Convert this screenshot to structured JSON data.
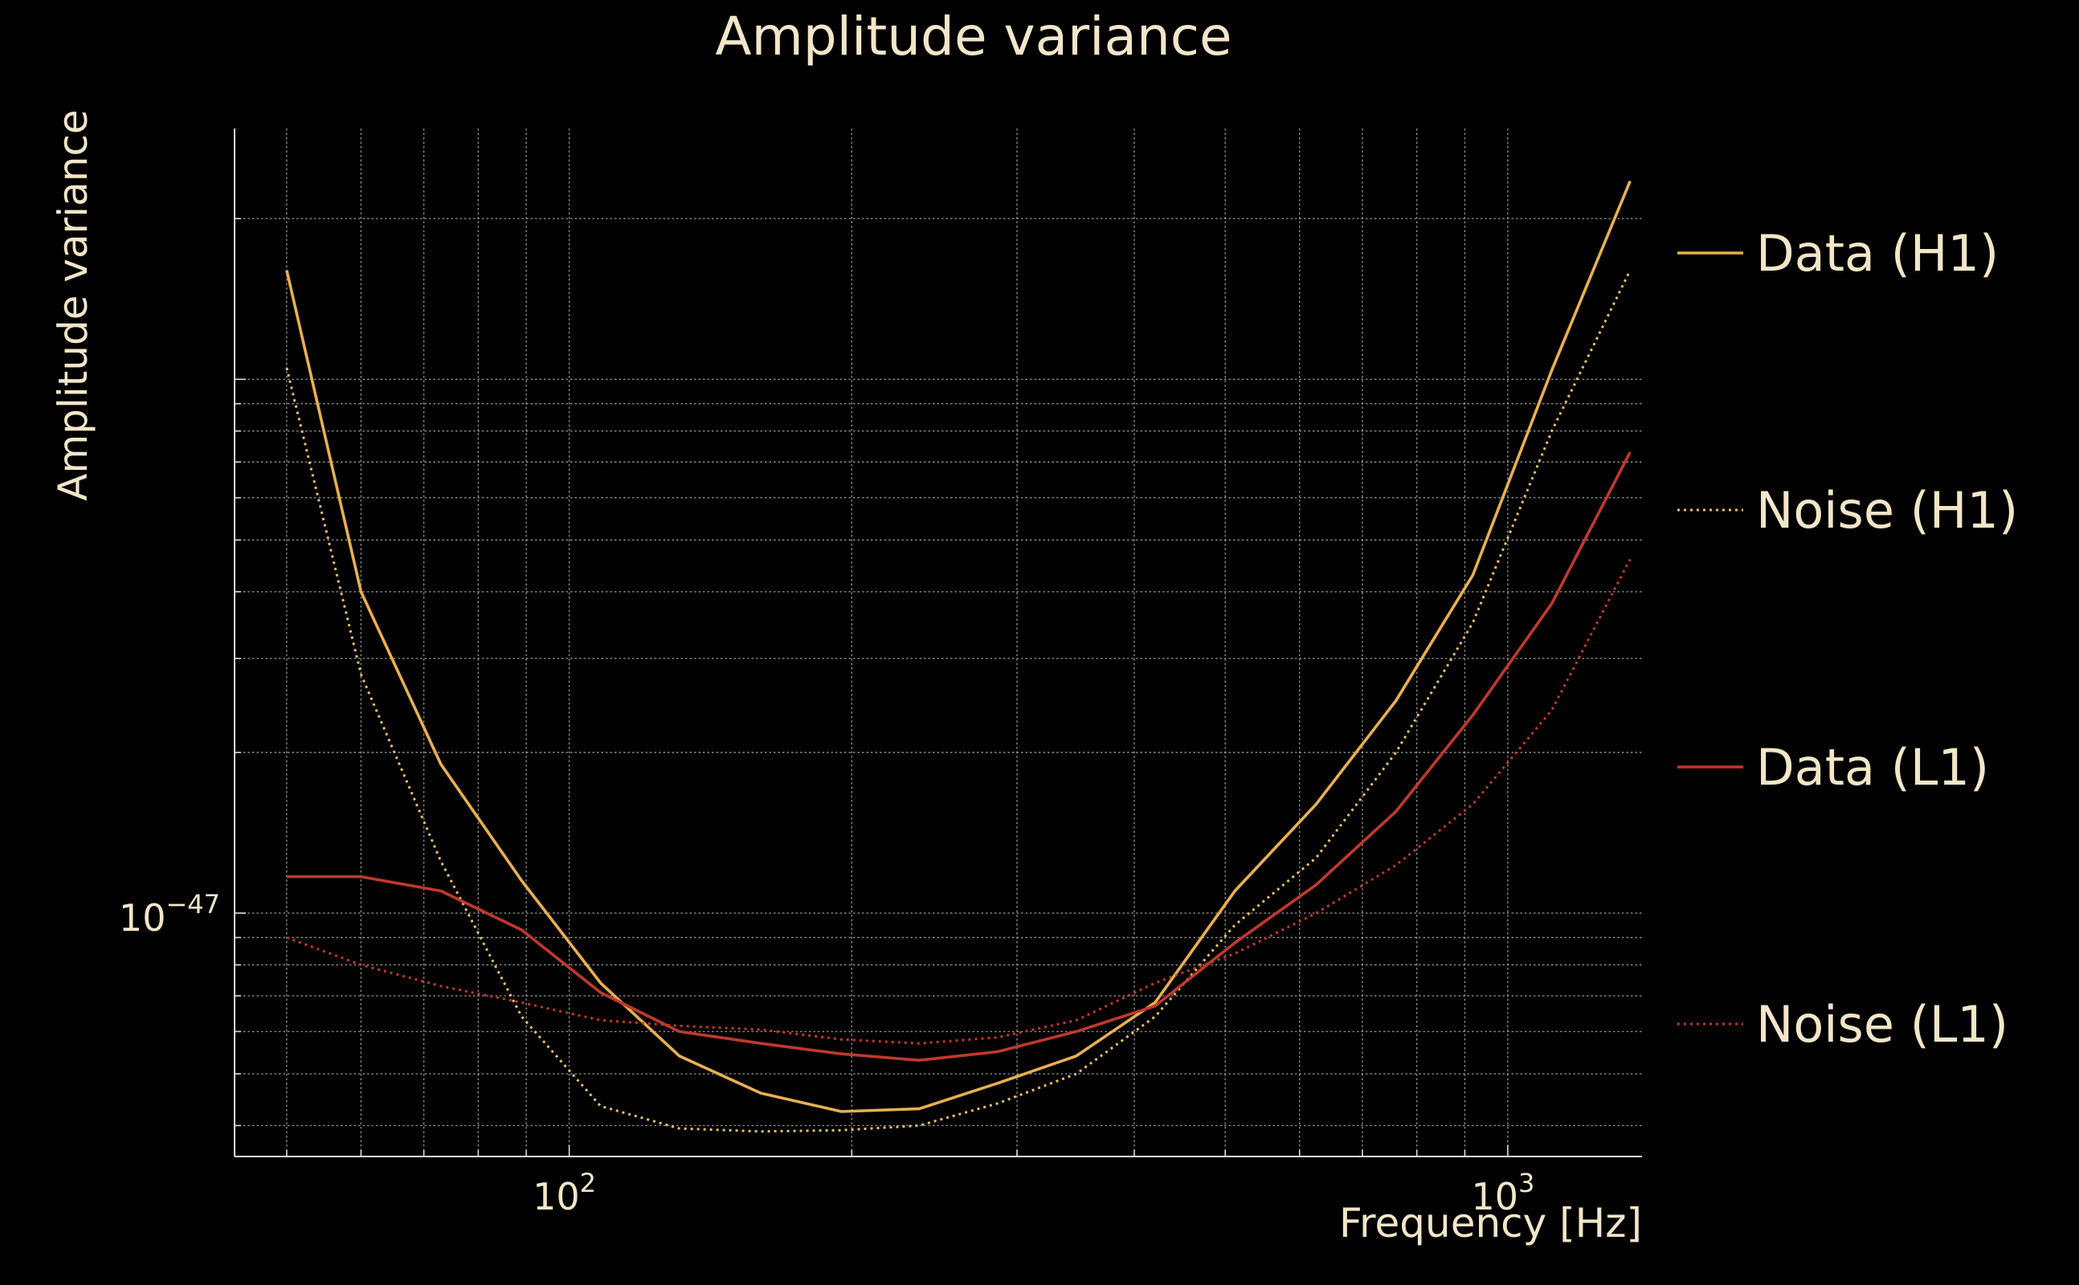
{
  "chart_data": {
    "type": "line",
    "title": "Amplitude variance",
    "xlabel": "Frequency [Hz]",
    "ylabel": "Amplitude variance",
    "xscale": "log",
    "yscale": "log",
    "xlim": [
      44,
      1390
    ],
    "ylim": [
      3.5e-48,
      2.95e-46
    ],
    "xticks": [
      {
        "value": 100,
        "base": "10",
        "exp": "2"
      },
      {
        "value": 1000,
        "base": "10",
        "exp": "3"
      }
    ],
    "yticks": [
      {
        "value": 1e-47,
        "base": "10",
        "exp": "−47"
      }
    ],
    "grid": true,
    "legend_position": "right",
    "series": [
      {
        "name": "Data (H1)",
        "color": "#e8b04f",
        "dash": "solid",
        "points": [
          [
            50,
            1.6e-46
          ],
          [
            60,
            4e-47
          ],
          [
            73,
            1.9e-47
          ],
          [
            89,
            1.15e-47
          ],
          [
            108,
            7.4e-48
          ],
          [
            131,
            5.4e-48
          ],
          [
            160,
            4.6e-48
          ],
          [
            195,
            4.25e-48
          ],
          [
            236,
            4.3e-48
          ],
          [
            286,
            4.8e-48
          ],
          [
            347,
            5.4e-48
          ],
          [
            421,
            6.8e-48
          ],
          [
            512,
            1.1e-47
          ],
          [
            625,
            1.6e-47
          ],
          [
            760,
            2.5e-47
          ],
          [
            918,
            4.3e-47
          ],
          [
            1114,
            1.04e-46
          ],
          [
            1350,
            2.35e-46
          ]
        ]
      },
      {
        "name": "Noise (H1)",
        "color": "#e8c065",
        "dash": "dotted",
        "points": [
          [
            50,
            1.05e-46
          ],
          [
            60,
            2.8e-47
          ],
          [
            73,
            1.25e-47
          ],
          [
            89,
            6.4e-48
          ],
          [
            108,
            4.35e-48
          ],
          [
            131,
            3.95e-48
          ],
          [
            160,
            3.9e-48
          ],
          [
            195,
            3.92e-48
          ],
          [
            236,
            4e-48
          ],
          [
            286,
            4.4e-48
          ],
          [
            347,
            5e-48
          ],
          [
            421,
            6.4e-48
          ],
          [
            512,
            9.5e-48
          ],
          [
            625,
            1.27e-47
          ],
          [
            760,
            2e-47
          ],
          [
            918,
            3.5e-47
          ],
          [
            1114,
            8e-47
          ],
          [
            1350,
            1.6e-46
          ]
        ]
      },
      {
        "name": "Data (L1)",
        "color": "#c0392b",
        "dash": "solid",
        "points": [
          [
            50,
            1.17e-47
          ],
          [
            60,
            1.17e-47
          ],
          [
            73,
            1.1e-47
          ],
          [
            89,
            9.3e-48
          ],
          [
            108,
            7.1e-48
          ],
          [
            131,
            6e-48
          ],
          [
            160,
            5.7e-48
          ],
          [
            195,
            5.45e-48
          ],
          [
            236,
            5.3e-48
          ],
          [
            286,
            5.5e-48
          ],
          [
            347,
            6e-48
          ],
          [
            421,
            6.7e-48
          ],
          [
            512,
            8.8e-48
          ],
          [
            625,
            1.13e-47
          ],
          [
            760,
            1.55e-47
          ],
          [
            918,
            2.35e-47
          ],
          [
            1114,
            3.8e-47
          ],
          [
            1350,
            7.3e-47
          ]
        ]
      },
      {
        "name": "Noise (L1)",
        "color": "#c0392b",
        "dash": "dotted",
        "points": [
          [
            50,
            9e-48
          ],
          [
            60,
            8e-48
          ],
          [
            73,
            7.3e-48
          ],
          [
            89,
            6.8e-48
          ],
          [
            108,
            6.3e-48
          ],
          [
            131,
            6.15e-48
          ],
          [
            160,
            6.05e-48
          ],
          [
            195,
            5.8e-48
          ],
          [
            236,
            5.7e-48
          ],
          [
            286,
            5.85e-48
          ],
          [
            347,
            6.3e-48
          ],
          [
            421,
            7.4e-48
          ],
          [
            512,
            8.4e-48
          ],
          [
            625,
            1e-47
          ],
          [
            760,
            1.23e-47
          ],
          [
            918,
            1.6e-47
          ],
          [
            1114,
            2.4e-47
          ],
          [
            1350,
            4.6e-47
          ]
        ]
      }
    ]
  }
}
